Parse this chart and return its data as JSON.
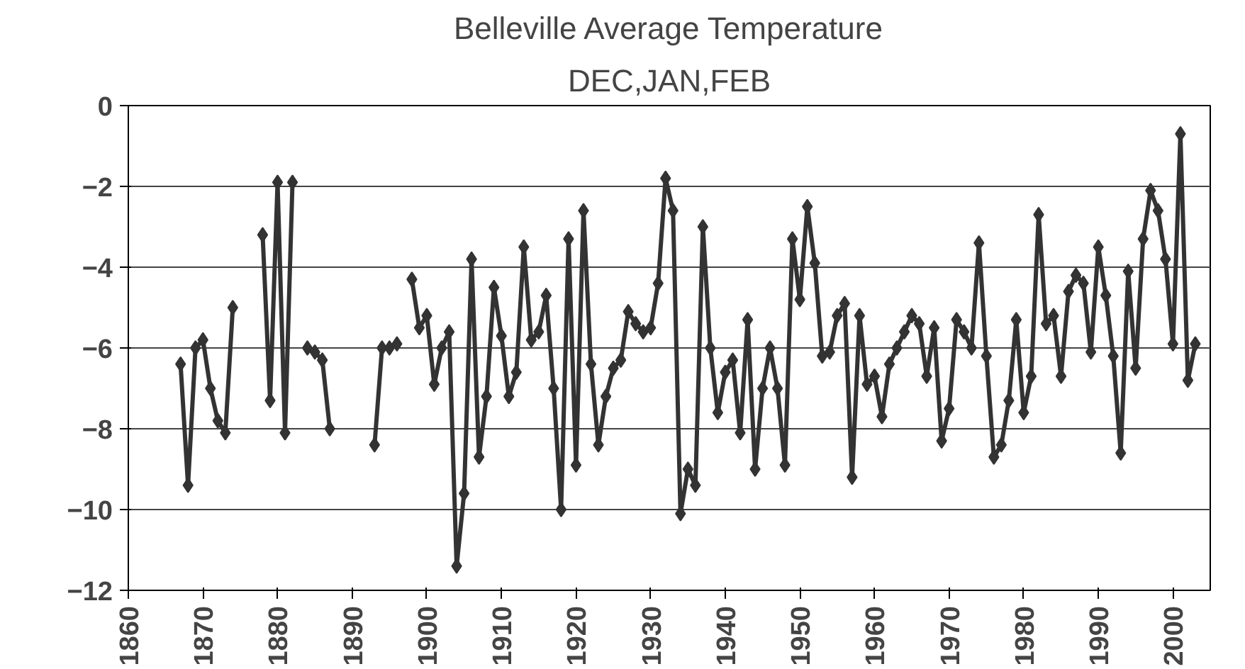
{
  "chart_data": {
    "type": "line",
    "title": "Belleville Average Temperature",
    "subtitle": "DEC,JAN,FEB",
    "x": [
      1867,
      1868,
      1869,
      1870,
      1871,
      1872,
      1873,
      1874,
      1875,
      1876,
      1877,
      1878,
      1879,
      1880,
      1881,
      1882,
      1883,
      1884,
      1885,
      1886,
      1887,
      1888,
      1889,
      1890,
      1891,
      1892,
      1893,
      1894,
      1895,
      1896,
      1897,
      1898,
      1899,
      1900,
      1901,
      1902,
      1903,
      1904,
      1905,
      1906,
      1907,
      1908,
      1909,
      1910,
      1911,
      1912,
      1913,
      1914,
      1915,
      1916,
      1917,
      1918,
      1919,
      1920,
      1921,
      1922,
      1923,
      1924,
      1925,
      1926,
      1927,
      1928,
      1929,
      1930,
      1931,
      1932,
      1933,
      1934,
      1935,
      1936,
      1937,
      1938,
      1939,
      1940,
      1941,
      1942,
      1943,
      1944,
      1945,
      1946,
      1947,
      1948,
      1949,
      1950,
      1951,
      1952,
      1953,
      1954,
      1955,
      1956,
      1957,
      1958,
      1959,
      1960,
      1961,
      1962,
      1963,
      1964,
      1965,
      1966,
      1967,
      1968,
      1969,
      1970,
      1971,
      1972,
      1973,
      1974,
      1975,
      1976,
      1977,
      1978,
      1979,
      1980,
      1981,
      1982,
      1983,
      1984,
      1985,
      1986,
      1987,
      1988,
      1989,
      1990,
      1991,
      1992,
      1993,
      1994,
      1995,
      1996,
      1997,
      1998,
      1999,
      2000,
      2001,
      2002,
      2003
    ],
    "series": [
      {
        "color": "#333333",
        "values": [
          -6.4,
          -9.4,
          -6.0,
          -5.8,
          -7.0,
          -7.8,
          -8.1,
          -5.0,
          null,
          null,
          null,
          -3.2,
          -7.3,
          -1.9,
          -8.1,
          -1.9,
          null,
          -6.0,
          -6.1,
          -6.3,
          -8.0,
          null,
          null,
          null,
          null,
          null,
          -8.4,
          -6.0,
          -6.0,
          -5.9,
          null,
          -4.3,
          -5.5,
          -5.2,
          -6.9,
          -6.0,
          -5.6,
          -11.4,
          -9.6,
          -3.8,
          -8.7,
          -7.2,
          -4.5,
          -5.7,
          -7.2,
          -6.6,
          -3.5,
          -5.8,
          -5.6,
          -4.7,
          -7.0,
          -10.0,
          -3.3,
          -8.9,
          -2.6,
          -6.4,
          -8.4,
          -7.2,
          -6.5,
          -6.3,
          -5.1,
          -5.4,
          -5.6,
          -5.5,
          -4.4,
          -1.8,
          -2.6,
          -10.1,
          -9.0,
          -9.4,
          -3.0,
          -6.0,
          -7.6,
          -6.6,
          -6.3,
          -8.1,
          -5.3,
          -9.0,
          -7.0,
          -6.0,
          -7.0,
          -8.9,
          -3.3,
          -4.8,
          -2.5,
          -3.9,
          -6.2,
          -6.1,
          -5.2,
          -4.9,
          -9.2,
          -5.2,
          -6.9,
          -6.7,
          -7.7,
          -6.4,
          -6.0,
          -5.6,
          -5.2,
          -5.4,
          -6.7,
          -5.5,
          -8.3,
          -7.5,
          -5.3,
          -5.6,
          -6.0,
          -3.4,
          -6.2,
          -8.7,
          -8.4,
          -7.3,
          -5.3,
          -7.6,
          -6.7,
          -2.7,
          -5.4,
          -5.2,
          -6.7,
          -4.6,
          -4.2,
          -4.4,
          -6.1,
          -3.5,
          -4.7,
          -6.2,
          -8.6,
          -4.1,
          -6.5,
          -3.3,
          -2.1,
          -2.6,
          -3.8,
          -5.9,
          -0.7,
          -6.8,
          -5.9
        ]
      }
    ],
    "xlim": [
      1860,
      2005
    ],
    "xticks": [
      1860,
      1870,
      1880,
      1890,
      1900,
      1910,
      1920,
      1930,
      1940,
      1950,
      1960,
      1970,
      1980,
      1990,
      2000
    ],
    "ylim": [
      -12,
      0
    ],
    "yticks": [
      -12,
      -10,
      -8,
      -6,
      -4,
      -2,
      0
    ],
    "grid": "y",
    "marker": "diamond",
    "line_style": "solid"
  }
}
